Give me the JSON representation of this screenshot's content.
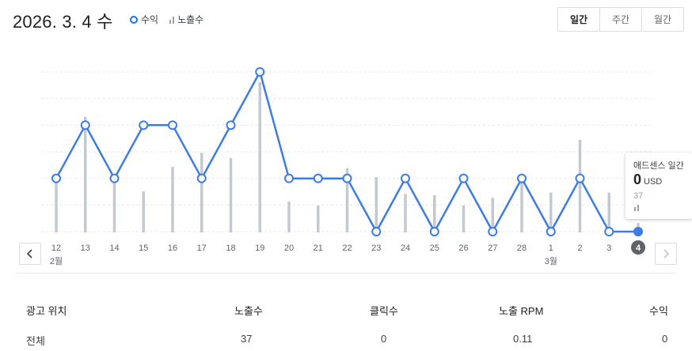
{
  "header": {
    "date": "2026. 3. 4 수",
    "legend": [
      {
        "label": "수익",
        "icon": "circle-marker-icon",
        "color": "#1a73e8"
      },
      {
        "label": "노출수",
        "icon": "bar-marker-icon",
        "color": "#9aa0a6"
      }
    ],
    "period_tabs": [
      {
        "label": "일간",
        "active": true
      },
      {
        "label": "주간",
        "active": false
      },
      {
        "label": "월간",
        "active": false
      }
    ]
  },
  "chart_data": {
    "type": "line",
    "categories": [
      "12",
      "13",
      "14",
      "15",
      "16",
      "17",
      "18",
      "19",
      "20",
      "21",
      "22",
      "23",
      "24",
      "25",
      "26",
      "27",
      "28",
      "1",
      "2",
      "3",
      "4"
    ],
    "month_labels": [
      {
        "index": 0,
        "label": "2월"
      },
      {
        "index": 17,
        "label": "3월"
      }
    ],
    "selected_index": 20,
    "series": [
      {
        "name": "수익",
        "kind": "line",
        "color": "#3c7ce6",
        "values": [
          2,
          4,
          2,
          4,
          4,
          2,
          4,
          6,
          2,
          2,
          2,
          0,
          2,
          0,
          2,
          0,
          2,
          0,
          2,
          0,
          0
        ]
      },
      {
        "name": "노출수",
        "kind": "bar",
        "color": "#c4c9d0",
        "values": [
          210,
          450,
          225,
          160,
          255,
          310,
          290,
          585,
          120,
          105,
          250,
          215,
          150,
          145,
          105,
          135,
          210,
          155,
          360,
          155,
          37
        ]
      }
    ],
    "ylim_revenue": [
      0,
      6
    ],
    "ylim_impressions": [
      0,
      585
    ]
  },
  "tooltip": {
    "title": "애드센스 일간",
    "value": "0",
    "unit": "USD",
    "impressions": "37"
  },
  "table": {
    "headers": [
      "광고 위치",
      "노출수",
      "클릭수",
      "노출 RPM",
      "수익"
    ],
    "rows": [
      [
        "전체",
        "37",
        "0",
        "0.11",
        "0"
      ]
    ]
  }
}
